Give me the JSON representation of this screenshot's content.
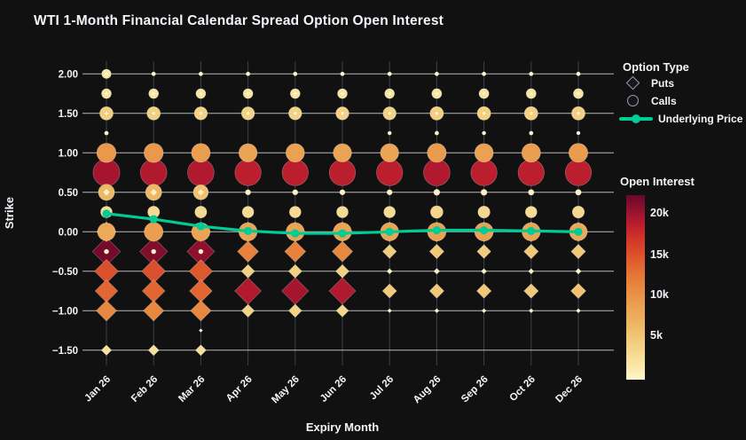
{
  "title": "WTI 1-Month Financial Calendar Spread Option Open Interest",
  "axes": {
    "x_label": "Expiry Month",
    "y_label": "Strike",
    "x_tick_labels": [
      "Jan 26",
      "Feb 26",
      "Mar 26",
      "Apr 26",
      "May 26",
      "Jun 26",
      "Jul 26",
      "Aug 26",
      "Sep 26",
      "Oct 26",
      "Dec 26"
    ],
    "y_ticks": [
      {
        "label": "2.00",
        "value": 2.0
      },
      {
        "label": "1.50",
        "value": 1.5
      },
      {
        "label": "1.00",
        "value": 1.0
      },
      {
        "label": "0.50",
        "value": 0.5
      },
      {
        "label": "0.00",
        "value": 0.0
      },
      {
        "label": "−0.50",
        "value": -0.5
      },
      {
        "label": "−1.00",
        "value": -1.0
      },
      {
        "label": "−1.50",
        "value": -1.5
      }
    ]
  },
  "legend": {
    "title": "Option Type",
    "items": [
      {
        "label": "Puts",
        "marker": "diamond"
      },
      {
        "label": "Calls",
        "marker": "circle"
      },
      {
        "label": "Underlying Price",
        "marker": "line"
      }
    ]
  },
  "colorbar": {
    "title": "Open Interest",
    "ticks": [
      {
        "label": "20k",
        "value": 20000
      },
      {
        "label": "15k",
        "value": 15000
      },
      {
        "label": "10k",
        "value": 10000
      },
      {
        "label": "5k",
        "value": 5000
      }
    ],
    "min": 0,
    "max": 22000
  },
  "colors": {
    "background": "#111111",
    "text": "#f2f5fa",
    "underlying_line": "#00cc96",
    "grid_horizontal": "#d6d6d6",
    "grid_vertical": "#3a424c",
    "bubble_stroke": "rgba(255,255,255,0.35)",
    "colormap": [
      {
        "t": 0.0,
        "c": "#fdf6cd"
      },
      {
        "t": 0.08,
        "c": "#f9e6a6"
      },
      {
        "t": 0.18,
        "c": "#f3d285"
      },
      {
        "t": 0.3,
        "c": "#edb765"
      },
      {
        "t": 0.42,
        "c": "#ea9c4e"
      },
      {
        "t": 0.54,
        "c": "#e67e3a"
      },
      {
        "t": 0.64,
        "c": "#e05e2e"
      },
      {
        "t": 0.75,
        "c": "#d43928"
      },
      {
        "t": 0.85,
        "c": "#b81b2e"
      },
      {
        "t": 0.93,
        "c": "#8e102e"
      },
      {
        "t": 1.0,
        "c": "#69082a"
      }
    ]
  },
  "chart_data": {
    "type": "scatter",
    "subtype": "bubble (size+color = open interest), circles = calls, diamonds = puts, line = underlying price",
    "x_categories": [
      "Jan 26",
      "Feb 26",
      "Mar 26",
      "Apr 26",
      "May 26",
      "Jun 26",
      "Jul 26",
      "Aug 26",
      "Sep 26",
      "Oct 26",
      "Dec 26"
    ],
    "ylabel": "Strike",
    "xlabel": "Expiry Month",
    "ylim": [
      -1.75,
      2.25
    ],
    "oi_scale": {
      "min": 0,
      "max": 22000
    },
    "underlying_price": {
      "name": "Underlying Price",
      "values": [
        0.23,
        0.16,
        0.07,
        0.01,
        -0.02,
        -0.02,
        0.0,
        0.02,
        0.02,
        0.01,
        0.0
      ]
    },
    "series": [
      {
        "type": "call",
        "strike": 2.0,
        "oi": [
          1800,
          150,
          150,
          150,
          150,
          150,
          150,
          150,
          150,
          150,
          150
        ]
      },
      {
        "type": "put",
        "strike": 2.0,
        "oi": [
          80,
          80,
          80,
          80,
          80,
          80,
          80,
          80,
          80,
          80,
          80
        ]
      },
      {
        "type": "call",
        "strike": 1.75,
        "oi": [
          2000,
          2000,
          2000,
          2000,
          2000,
          2000,
          2000,
          2100,
          2100,
          2100,
          2100
        ]
      },
      {
        "type": "put",
        "strike": 1.75,
        "oi": [
          80,
          80,
          80,
          80,
          80,
          80,
          80,
          80,
          80,
          80,
          80
        ]
      },
      {
        "type": "call",
        "strike": 1.5,
        "oi": [
          4200,
          4200,
          4000,
          4000,
          4000,
          4000,
          4000,
          4300,
          4300,
          4300,
          4300
        ]
      },
      {
        "type": "put",
        "strike": 1.5,
        "oi": [
          80,
          80,
          80,
          80,
          80,
          80,
          80,
          80,
          80,
          80,
          80
        ]
      },
      {
        "type": "call",
        "strike": 1.25,
        "oi": [
          150,
          null,
          null,
          null,
          null,
          null,
          120,
          150,
          120,
          150,
          100
        ]
      },
      {
        "type": "call",
        "strike": 1.0,
        "oi": [
          9500,
          9500,
          9000,
          8500,
          8800,
          8500,
          8500,
          9200,
          8800,
          9000,
          9200
        ]
      },
      {
        "type": "call",
        "strike": 0.75,
        "oi": [
          19500,
          19000,
          19000,
          18500,
          18500,
          18500,
          18500,
          19000,
          18500,
          18500,
          18500
        ]
      },
      {
        "type": "call",
        "strike": 0.5,
        "oi": [
          6500,
          6500,
          5500,
          400,
          400,
          400,
          400,
          600,
          600,
          500,
          500
        ]
      },
      {
        "type": "put",
        "strike": 0.5,
        "oi": [
          600,
          600,
          500,
          null,
          null,
          null,
          null,
          null,
          null,
          null,
          null
        ]
      },
      {
        "type": "call",
        "strike": 0.25,
        "oi": [
          3000,
          3200,
          3200,
          3000,
          3000,
          3000,
          3000,
          3600,
          3300,
          3000,
          3300
        ]
      },
      {
        "type": "call",
        "strike": 0.0,
        "oi": [
          8000,
          9000,
          8500,
          8500,
          8500,
          8500,
          8500,
          8800,
          8800,
          8500,
          8000
        ]
      },
      {
        "type": "put",
        "strike": 0.0,
        "oi": [
          10000,
          10000,
          10000,
          10000,
          10000,
          10000,
          10000,
          10000,
          10000,
          10000,
          9500
        ]
      },
      {
        "type": "call",
        "strike": -0.25,
        "oi": [
          250,
          250,
          250,
          null,
          null,
          null,
          null,
          null,
          null,
          null,
          null
        ]
      },
      {
        "type": "put",
        "strike": -0.25,
        "oi": [
          21500,
          21000,
          20500,
          11500,
          11500,
          11000,
          4500,
          5000,
          4500,
          5000,
          5000
        ]
      },
      {
        "type": "put",
        "strike": -0.5,
        "oi": [
          15000,
          15000,
          14500,
          4200,
          4200,
          4200,
          400,
          500,
          400,
          400,
          450
        ]
      },
      {
        "type": "put",
        "strike": -0.75,
        "oi": [
          13500,
          13500,
          13500,
          19000,
          19500,
          19000,
          4800,
          5000,
          5000,
          5000,
          5500
        ]
      },
      {
        "type": "put",
        "strike": -1.0,
        "oi": [
          11000,
          11000,
          11000,
          3800,
          4000,
          3500,
          150,
          200,
          200,
          200,
          200
        ]
      },
      {
        "type": "put",
        "strike": -1.25,
        "oi": [
          null,
          null,
          100,
          null,
          null,
          null,
          null,
          null,
          null,
          null,
          null
        ]
      },
      {
        "type": "put",
        "strike": -1.5,
        "oi": [
          2200,
          2500,
          2500,
          null,
          null,
          null,
          null,
          null,
          null,
          null,
          null
        ]
      }
    ]
  }
}
